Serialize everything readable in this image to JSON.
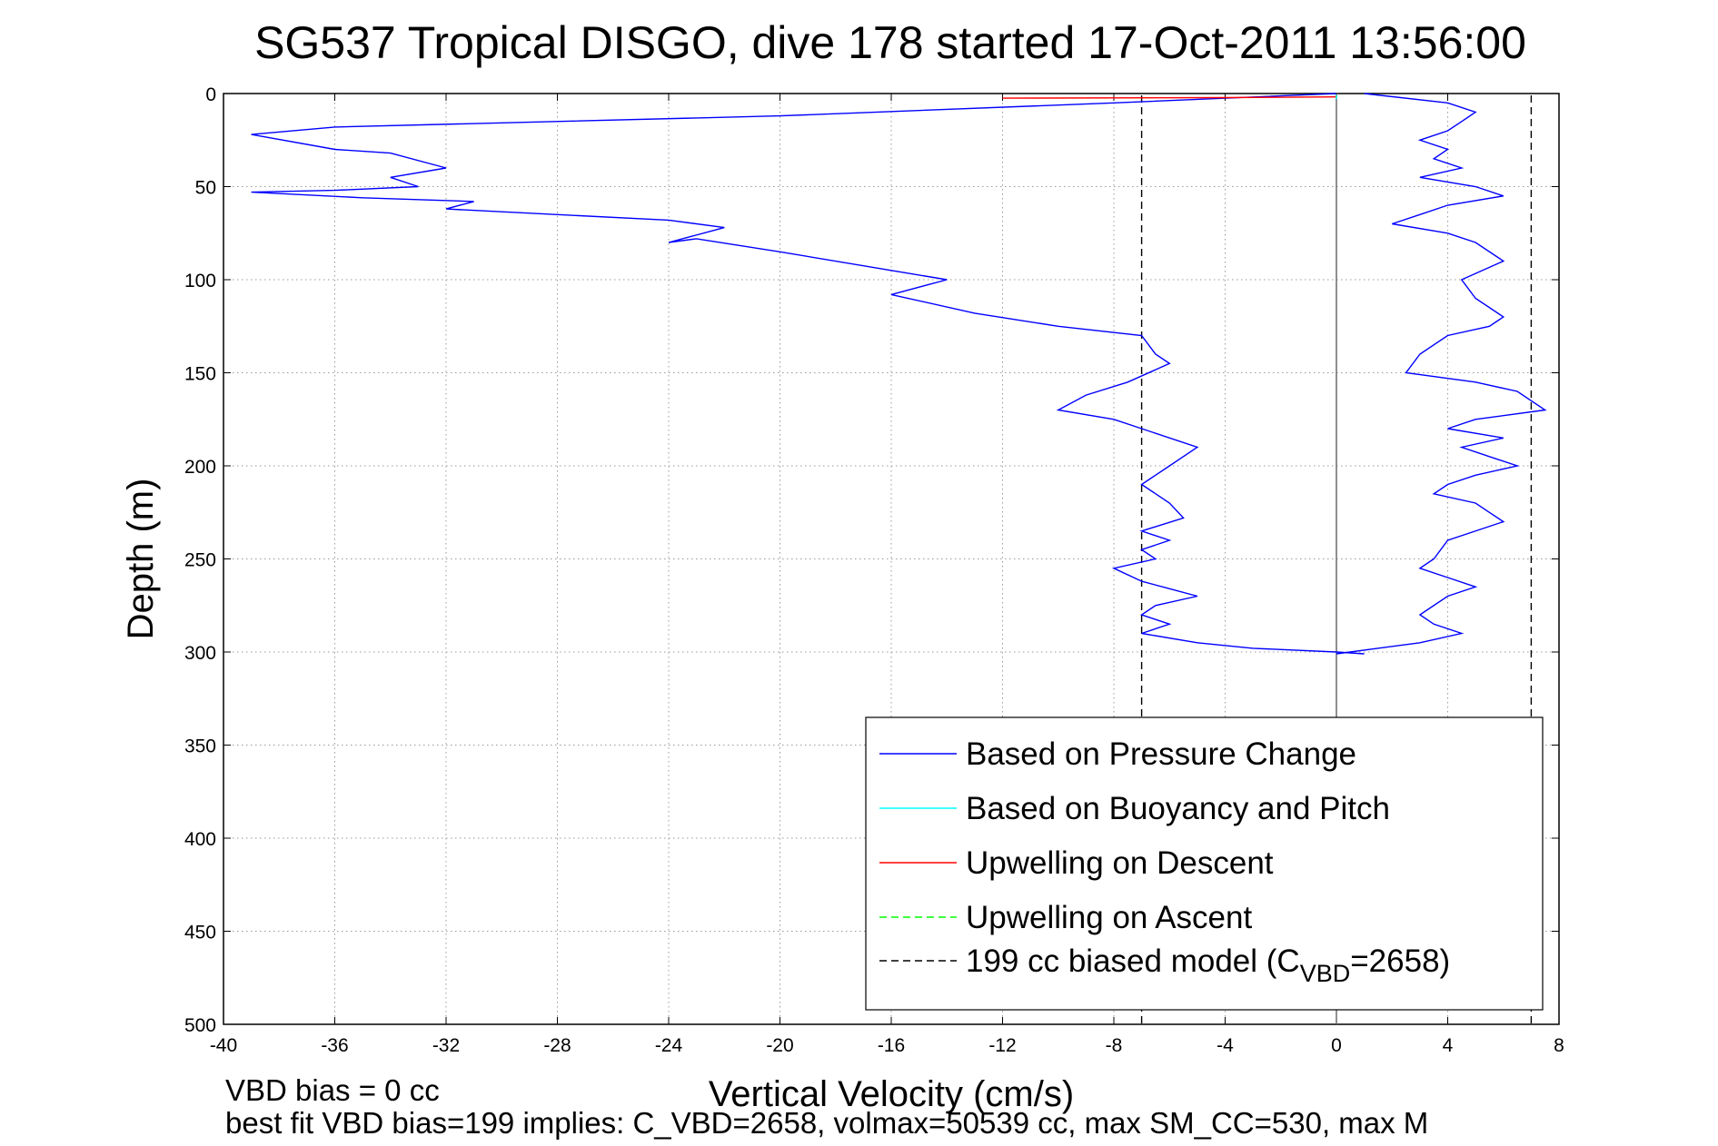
{
  "chart_data": {
    "type": "line",
    "title": "SG537 Tropical DISGO, dive 178 started 17-Oct-2011 13:56:00",
    "xlabel": "Vertical Velocity (cm/s)",
    "ylabel": "Depth (m)",
    "xlim": [
      -40,
      8
    ],
    "ylim": [
      0,
      500
    ],
    "y_reversed": true,
    "grid": true,
    "legend_position": "bottom-right",
    "x_ticks": [
      "-40",
      "-36",
      "-32",
      "-28",
      "-24",
      "-20",
      "-16",
      "-12",
      "-8",
      "-4",
      "0",
      "4",
      "8"
    ],
    "y_ticks": [
      "0",
      "50",
      "100",
      "150",
      "200",
      "250",
      "300",
      "350",
      "400",
      "450",
      "500"
    ],
    "series": [
      {
        "name": "Based on Pressure Change",
        "color": "#0000ff",
        "style": "solid",
        "segment": "descent",
        "x": [
          0,
          -8,
          -20,
          -36,
          -39,
          -36,
          -34,
          -32,
          -34,
          -33,
          -36,
          -39,
          -35,
          -31,
          -32,
          -28,
          -24,
          -22,
          -24,
          -23,
          -20,
          -16,
          -14,
          -16,
          -13,
          -10,
          -7,
          -6.5,
          -6,
          -7.5,
          -9,
          -10,
          -8,
          -7,
          -5,
          -6,
          -7,
          -6,
          -5.5,
          -7,
          -6,
          -7,
          -6.5,
          -8,
          -7,
          -6,
          -5,
          -6.5,
          -7,
          -6,
          -7,
          -5,
          -3,
          0,
          1
        ],
        "y": [
          0,
          5,
          12,
          18,
          22,
          30,
          32,
          40,
          45,
          50,
          52,
          53,
          56,
          58,
          62,
          65,
          68,
          72,
          80,
          78,
          85,
          95,
          100,
          108,
          118,
          125,
          130,
          140,
          145,
          155,
          162,
          170,
          175,
          180,
          190,
          200,
          210,
          220,
          228,
          235,
          240,
          245,
          250,
          255,
          262,
          266,
          270,
          275,
          280,
          285,
          290,
          295,
          298,
          300,
          301
        ]
      },
      {
        "name": "",
        "color": "#0000ff",
        "style": "solid",
        "segment": "ascent",
        "x": [
          1,
          4,
          5,
          4.5,
          4,
          3,
          4,
          3.5,
          4.5,
          3,
          5,
          6,
          4,
          3,
          2,
          4,
          5,
          6,
          4.5,
          5,
          6,
          5.5,
          4,
          3,
          2.5,
          5,
          6.5,
          7.5,
          5,
          4,
          6,
          4.5,
          5.5,
          6.5,
          5,
          4,
          3.5,
          5,
          5.5,
          6,
          4,
          3.5,
          3,
          4,
          5,
          4,
          3,
          3.5,
          4.5,
          3,
          0
        ],
        "y": [
          0,
          5,
          10,
          15,
          20,
          25,
          30,
          35,
          40,
          45,
          50,
          55,
          60,
          65,
          70,
          75,
          80,
          90,
          100,
          110,
          120,
          125,
          130,
          140,
          150,
          155,
          160,
          170,
          175,
          180,
          185,
          190,
          195,
          200,
          205,
          210,
          215,
          220,
          225,
          230,
          240,
          250,
          255,
          260,
          265,
          270,
          280,
          285,
          290,
          295,
          301
        ]
      },
      {
        "name": "Based on Buoyancy and Pitch",
        "color": "#00ffff",
        "style": "solid",
        "x": [
          0,
          0
        ],
        "y": [
          1,
          3
        ]
      },
      {
        "name": "Upwelling on Descent",
        "color": "#ff0000",
        "style": "solid",
        "x": [
          -12,
          -4,
          0
        ],
        "y": [
          2.5,
          2.2,
          1.8
        ]
      },
      {
        "name": "Upwelling on Ascent",
        "color": "#00ff00",
        "style": "dashed",
        "x": [
          0,
          0
        ],
        "y": [
          1,
          2
        ]
      },
      {
        "name": "199 cc biased model (C_VBD=2658)",
        "color": "#000000",
        "style": "dashed",
        "x": [
          -7,
          -7
        ],
        "y": [
          1,
          500
        ],
        "x2": [
          7,
          7
        ]
      }
    ],
    "legend": [
      {
        "label": "Based on Pressure Change",
        "color": "#0000ff",
        "style": "solid"
      },
      {
        "label": "Based on Buoyancy and Pitch",
        "color": "#00ffff",
        "style": "solid"
      },
      {
        "label": "Upwelling on Descent",
        "color": "#ff0000",
        "style": "solid"
      },
      {
        "label": "Upwelling on Ascent",
        "color": "#00ff00",
        "style": "dashed"
      },
      {
        "label_main": "199 cc biased model (C",
        "label_sub": "VBD",
        "label_end": "=2658)",
        "color": "#000000",
        "style": "dashed"
      }
    ]
  },
  "footer": {
    "line1": "VBD bias = 0 cc",
    "line2": "best fit VBD bias=199 implies: C_VBD=2658, volmax=50539 cc, max SM_CC=530, max M"
  }
}
